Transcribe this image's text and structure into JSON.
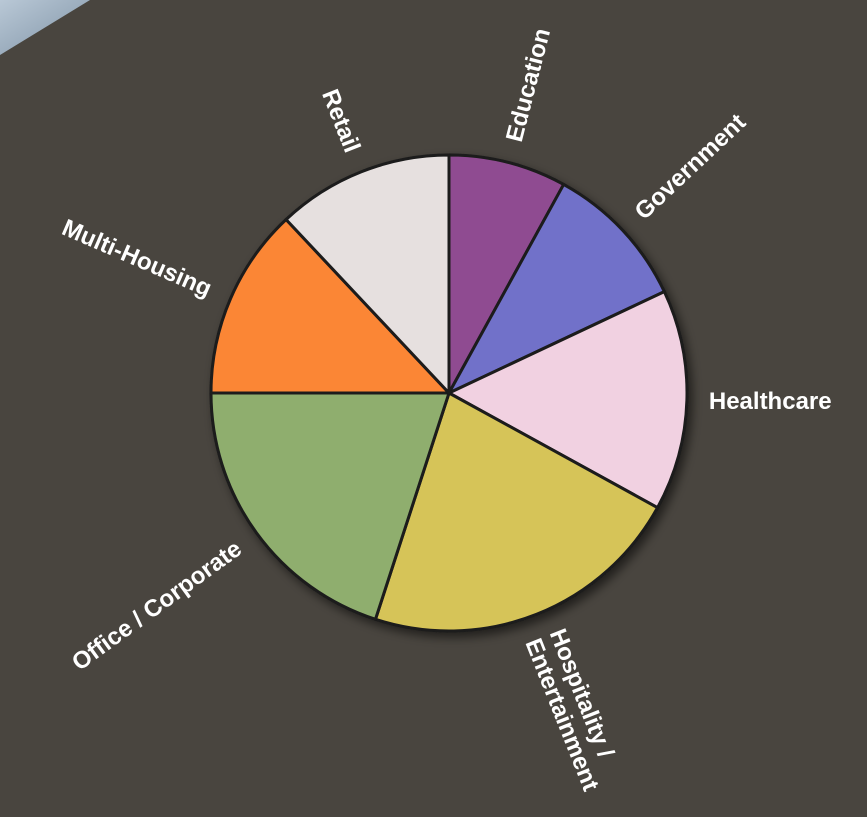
{
  "chart_data": {
    "type": "pie",
    "categories": [
      "Education",
      "Government",
      "Healthcare",
      "Hospitality / Entertainment",
      "Office / Corporate",
      "Multi-Housing",
      "Retail"
    ],
    "values": [
      8,
      10,
      15,
      22,
      20,
      13,
      12
    ],
    "colors": [
      "#8f4c91",
      "#7171c9",
      "#f1d1e1",
      "#d6c458",
      "#8fae6e",
      "#fb8636",
      "#e6e0df"
    ],
    "legend": "none",
    "title": "",
    "slice_labels": [
      [
        "Education"
      ],
      [
        "Government"
      ],
      [
        "Healthcare"
      ],
      [
        "Hospitality /",
        "Entertainment"
      ],
      [
        "Office / Corporate"
      ],
      [
        "Multi-Housing"
      ],
      [
        "Retail"
      ]
    ]
  }
}
